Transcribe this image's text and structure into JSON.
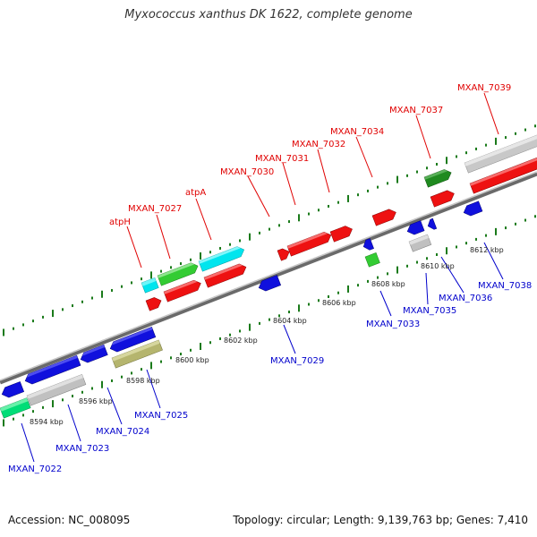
{
  "title": "Myxococcus xanthus DK 1622, complete genome",
  "footer": {
    "accession": "Accession: NC_008095",
    "topology": "Topology: circular; Length: 9,139,763 bp; Genes: 7,410"
  },
  "colors": {
    "backbone": "#808080",
    "tick": "#1a7a1a",
    "forward_label": "#e00000",
    "reverse_label": "#0000cc",
    "kbp_label": "#222222"
  },
  "kbp_labels": [
    "8594 kbp",
    "8596 kbp",
    "8598 kbp",
    "8600 kbp",
    "8602 kbp",
    "8604 kbp",
    "8606 kbp",
    "8608 kbp",
    "8610 kbp",
    "8612 kbp"
  ],
  "forward_genes": [
    {
      "label": "atpH",
      "color": "#00e5ee"
    },
    {
      "label": "MXAN_7027",
      "color": "#33cc33"
    },
    {
      "label": "atpA",
      "color": "#00e5ee"
    },
    {
      "label": "MXAN_7030",
      "color": "#ee1111"
    },
    {
      "label": "MXAN_7031",
      "color": "#ee1111"
    },
    {
      "label": "MXAN_7032",
      "color": "#ee1111"
    },
    {
      "label": "MXAN_7034",
      "color": "#ee1111"
    },
    {
      "label": "MXAN_7037",
      "color": "#1f8a1f"
    },
    {
      "label": "MXAN_7039",
      "color": "#c8c8c8"
    }
  ],
  "reverse_genes": [
    {
      "label": "MXAN_7022",
      "color": "#00dd77"
    },
    {
      "label": "MXAN_7023",
      "color": "#c0c0c0"
    },
    {
      "label": "MXAN_7024",
      "color": "#1010dd"
    },
    {
      "label": "MXAN_7025",
      "color": "#b5b56e"
    },
    {
      "label": "MXAN_7029",
      "color": "#1010dd"
    },
    {
      "label": "MXAN_7033",
      "color": "#1010dd"
    },
    {
      "label": "MXAN_7035",
      "color": "#1010dd"
    },
    {
      "label": "MXAN_7036",
      "color": "#c0c0c0"
    },
    {
      "label": "MXAN_7038",
      "color": "#1010dd"
    }
  ]
}
